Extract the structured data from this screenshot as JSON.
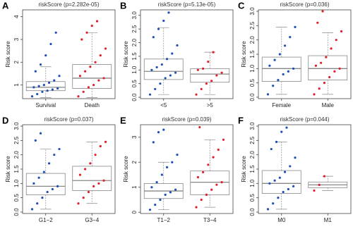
{
  "chart_data": [
    {
      "type": "box",
      "panel": "A",
      "title": "riskScore (p=2.282e-05)",
      "ylabel": "Risk score",
      "ylim": [
        0.4,
        4.3
      ],
      "yticks": [
        1,
        2,
        3,
        4
      ],
      "groups": [
        {
          "name": "Survival",
          "color": "#1f4fb4",
          "whisker_low": 0.45,
          "q1": 0.75,
          "median": 0.9,
          "q3": 1.15,
          "whisker_high": 1.8,
          "points": [
            0.5,
            0.6,
            0.7,
            0.75,
            0.8,
            0.85,
            0.9,
            0.95,
            1.0,
            1.1,
            1.2,
            1.4,
            1.6,
            1.9,
            2.3,
            2.8,
            3.3
          ]
        },
        {
          "name": "Death",
          "color": "#e0202a",
          "whisker_low": 0.45,
          "q1": 0.85,
          "median": 1.3,
          "q3": 1.9,
          "whisker_high": 3.3,
          "points": [
            0.5,
            0.7,
            0.9,
            1.0,
            1.2,
            1.3,
            1.4,
            1.6,
            1.8,
            2.0,
            2.3,
            2.6,
            3.0,
            3.3,
            3.6,
            3.8
          ]
        }
      ]
    },
    {
      "type": "box",
      "panel": "B",
      "title": "riskScore (p=5.13e-05)",
      "ylabel": "Risk score",
      "ylim": [
        -0.05,
        3.2
      ],
      "yticks": [
        {
          "value": 0,
          "label": "0.0"
        },
        0.5,
        {
          "value": 1,
          "label": "1.0"
        },
        1.5,
        {
          "value": 2,
          "label": "2.0"
        },
        2.5,
        {
          "value": 3,
          "label": "3.0"
        }
      ],
      "groups": [
        {
          "name": "<5",
          "color": "#1f4fb4",
          "whisker_low": 0.1,
          "q1": 0.65,
          "median": 0.95,
          "q3": 1.4,
          "whisker_high": 2.55,
          "points": [
            0.1,
            0.3,
            0.5,
            0.7,
            0.8,
            0.9,
            1.0,
            1.1,
            1.2,
            1.4,
            1.6,
            1.9,
            2.2,
            2.5,
            2.8,
            3.1
          ]
        },
        {
          "name": ">5",
          "color": "#e0202a",
          "whisker_low": 0.1,
          "q1": 0.55,
          "median": 0.85,
          "q3": 1.05,
          "whisker_high": 1.65,
          "points": [
            0.1,
            0.3,
            0.5,
            0.6,
            0.8,
            0.9,
            1.0,
            1.05,
            1.3,
            1.65
          ]
        }
      ]
    },
    {
      "type": "box",
      "panel": "C",
      "title": "riskScore (p=0.036)",
      "ylabel": "Risk score",
      "ylim": [
        -0.05,
        3.05
      ],
      "yticks": [
        {
          "value": 0,
          "label": "0.0"
        },
        0.5,
        {
          "value": 1,
          "label": "1.0"
        },
        1.5,
        {
          "value": 2,
          "label": "2.0"
        },
        2.5,
        {
          "value": 3,
          "label": "3.0"
        }
      ],
      "groups": [
        {
          "name": "Female",
          "color": "#1f4fb4",
          "whisker_low": 0.1,
          "q1": 0.55,
          "median": 1.0,
          "q3": 1.4,
          "whisker_high": 2.45,
          "points": [
            0.1,
            0.4,
            0.6,
            0.8,
            0.9,
            1.0,
            1.1,
            1.3,
            1.5,
            1.8,
            2.1,
            2.45
          ]
        },
        {
          "name": "Male",
          "color": "#e0202a",
          "whisker_low": 0.1,
          "q1": 0.6,
          "median": 1.0,
          "q3": 1.45,
          "whisker_high": 2.25,
          "points": [
            0.1,
            0.3,
            0.5,
            0.7,
            0.9,
            1.0,
            1.1,
            1.2,
            1.4,
            1.7,
            2.0,
            2.3,
            2.6,
            3.0
          ]
        }
      ]
    },
    {
      "type": "box",
      "panel": "D",
      "title": "riskScore (p=0.037)",
      "ylabel": "Risk score",
      "ylim": [
        -0.05,
        3.05
      ],
      "yticks": [
        {
          "value": 0,
          "label": "0.0"
        },
        0.5,
        {
          "value": 1,
          "label": "1.0"
        },
        1.5,
        {
          "value": 2,
          "label": "2.0"
        },
        2.5,
        {
          "value": 3,
          "label": "3.0"
        }
      ],
      "groups": [
        {
          "name": "G1−2",
          "color": "#1f4fb4",
          "whisker_low": 0.1,
          "q1": 0.6,
          "median": 0.9,
          "q3": 1.35,
          "whisker_high": 2.2,
          "points": [
            0.1,
            0.3,
            0.5,
            0.7,
            0.8,
            0.9,
            1.0,
            1.2,
            1.4,
            1.7,
            2.0,
            2.2,
            2.5,
            2.75
          ]
        },
        {
          "name": "G3−4",
          "color": "#e0202a",
          "whisker_low": 0.3,
          "q1": 0.75,
          "median": 1.1,
          "q3": 1.6,
          "whisker_high": 2.45,
          "points": [
            0.3,
            0.5,
            0.7,
            0.9,
            1.0,
            1.1,
            1.3,
            1.5,
            1.7,
            2.0,
            2.3,
            2.45
          ]
        }
      ]
    },
    {
      "type": "box",
      "panel": "E",
      "title": "riskScore (p=0.039)",
      "ylabel": "Risk score",
      "ylim": [
        -0.05,
        3.5
      ],
      "yticks": [
        0,
        1,
        2,
        3
      ],
      "groups": [
        {
          "name": "T1−2",
          "color": "#1f4fb4",
          "whisker_low": 0.1,
          "q1": 0.55,
          "median": 0.85,
          "q3": 1.15,
          "whisker_high": 2.0,
          "points": [
            0.1,
            0.3,
            0.5,
            0.7,
            0.8,
            0.9,
            1.0,
            1.2,
            1.5,
            1.8,
            2.0,
            2.3,
            2.8,
            3.2,
            3.3
          ]
        },
        {
          "name": "T3−4",
          "color": "#e0202a",
          "whisker_low": 0.2,
          "q1": 0.7,
          "median": 1.2,
          "q3": 1.65,
          "whisker_high": 2.9,
          "points": [
            0.2,
            0.5,
            0.7,
            0.9,
            1.1,
            1.2,
            1.4,
            1.6,
            1.9,
            2.2,
            2.5,
            2.9,
            3.4
          ]
        }
      ]
    },
    {
      "type": "box",
      "panel": "F",
      "title": "riskScore (p=0.044)",
      "ylabel": "Risk score",
      "ylim": [
        -0.05,
        3.05
      ],
      "yticks": [
        {
          "value": 0,
          "label": "0.0"
        },
        0.5,
        {
          "value": 1,
          "label": "1.0"
        },
        1.5,
        {
          "value": 2,
          "label": "2.0"
        },
        2.5,
        {
          "value": 3,
          "label": "3.0"
        }
      ],
      "groups": [
        {
          "name": "M0",
          "color": "#1f4fb4",
          "whisker_low": 0.1,
          "q1": 0.65,
          "median": 1.0,
          "q3": 1.45,
          "whisker_high": 2.45,
          "points": [
            0.1,
            0.3,
            0.5,
            0.7,
            0.8,
            0.9,
            1.0,
            1.1,
            1.2,
            1.4,
            1.6,
            1.9,
            2.2,
            2.45,
            2.8,
            2.95
          ]
        },
        {
          "name": "M1",
          "color": "#e0202a",
          "whisker_low": 0.75,
          "q1": 0.85,
          "median": 0.95,
          "q3": 1.05,
          "whisker_high": 1.25,
          "points": [
            0.75,
            0.95,
            1.25
          ]
        }
      ]
    }
  ]
}
